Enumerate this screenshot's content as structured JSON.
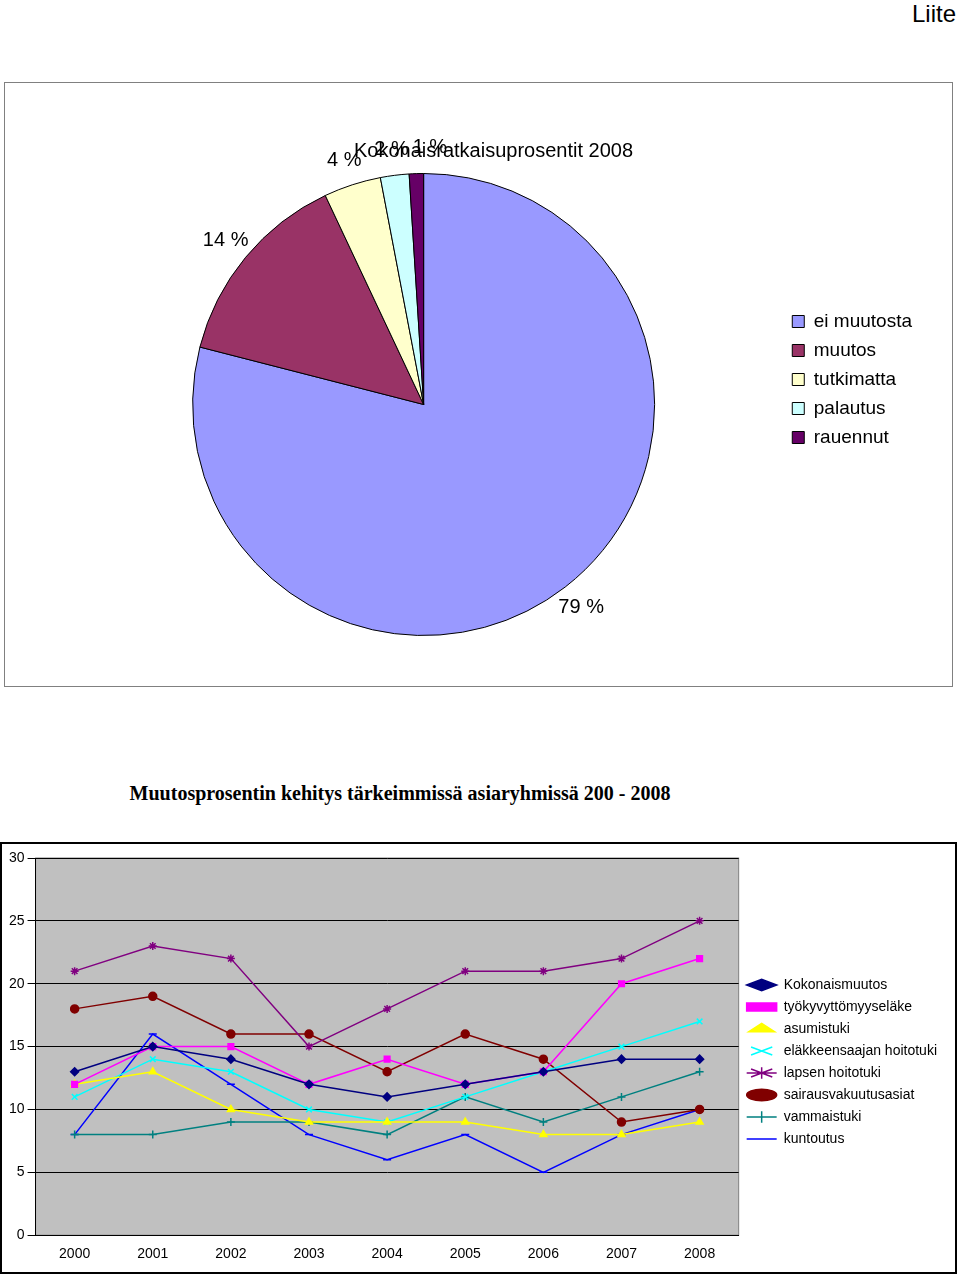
{
  "header": {
    "text": "Liite"
  },
  "chart_data": [
    {
      "type": "pie",
      "title": "Kokonaisratkaisuprosentit 2008",
      "categories": [
        "ei muutosta",
        "muutos",
        "tutkimatta",
        "palautus",
        "rauennut"
      ],
      "values": [
        79,
        14,
        4,
        2,
        1
      ],
      "value_labels": [
        "79 %",
        "14 %",
        "4 %",
        "2 %",
        "1 %"
      ],
      "colors": [
        "#9999ff",
        "#993366",
        "#ffffcc",
        "#ccffff",
        "#660066"
      ],
      "data_labels": true,
      "legend": "right"
    },
    {
      "type": "line",
      "title": "Muutosprosentin kehitys tärkeimmissä asiaryhmissä 200 - 2008",
      "categories": [
        "2000",
        "2001",
        "2002",
        "2003",
        "2004",
        "2005",
        "2006",
        "2007",
        "2008"
      ],
      "ylim": [
        0,
        30
      ],
      "yticks": [
        0,
        5,
        10,
        15,
        20,
        25,
        30
      ],
      "grid": true,
      "legend": "right",
      "series": [
        {
          "name": "Kokonaismuutos",
          "color": "#000080",
          "marker": "diamond",
          "values": [
            13,
            15,
            14,
            12,
            11,
            12,
            13,
            14,
            14
          ]
        },
        {
          "name": "työkyvyttömyyseläke",
          "color": "#ff00ff",
          "marker": "square",
          "values": [
            12,
            15,
            15,
            12,
            14,
            12,
            13,
            20,
            22
          ]
        },
        {
          "name": "asumistuki",
          "color": "#ffff00",
          "marker": "triangle",
          "values": [
            12,
            13,
            10,
            9,
            9,
            9,
            8,
            8,
            9
          ]
        },
        {
          "name": "eläkkeensaajan hoitotuki",
          "color": "#00ffff",
          "marker": "x",
          "values": [
            11,
            14,
            13,
            10,
            9,
            11,
            13,
            15,
            17
          ]
        },
        {
          "name": "lapsen hoitotuki",
          "color": "#800080",
          "marker": "star",
          "values": [
            21,
            23,
            22,
            15,
            18,
            21,
            21,
            22,
            25
          ]
        },
        {
          "name": "sairausvakuutusasiat",
          "color": "#800000",
          "marker": "circle",
          "values": [
            18,
            19,
            16,
            16,
            13,
            16,
            14,
            9,
            10
          ]
        },
        {
          "name": "vammaistuki",
          "color": "#008080",
          "marker": "plus",
          "values": [
            8,
            8,
            9,
            9,
            8,
            11,
            9,
            11,
            13
          ]
        },
        {
          "name": "kuntoutus",
          "color": "#0000ff",
          "marker": "dash",
          "values": [
            8,
            16,
            12,
            8,
            6,
            8,
            5,
            8,
            10
          ]
        }
      ]
    }
  ]
}
